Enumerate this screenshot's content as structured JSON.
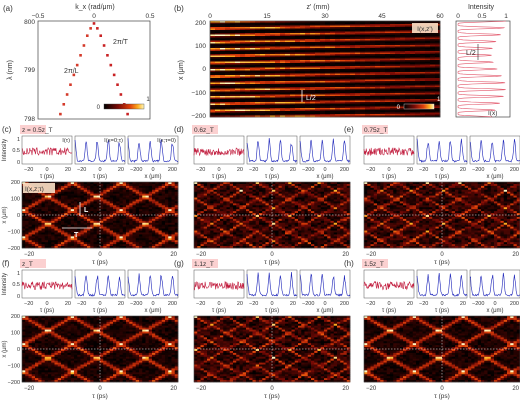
{
  "panel_letters": [
    "(a)",
    "(b)",
    "(c)",
    "(d)",
    "(e)",
    "(f)",
    "(g)",
    "(h)"
  ],
  "panel_a": {
    "xlabel_top": "k_x (rad/μm)",
    "ylabel": "λ (nm)",
    "label_T": "2π/T",
    "label_L": "2π/L",
    "colorbar_min": "0",
    "colorbar_max": "1"
  },
  "panel_b": {
    "xlabel_top": "z' (mm)",
    "ylabel": "x (μm)",
    "inset_label": "I(x,z')",
    "period_label": "L/2",
    "colorbar_min": "0",
    "colorbar_max": "1",
    "profile_title": "Intensity",
    "profile_ticks": [
      "0",
      "0.5",
      "1"
    ],
    "profile_period_label": "L/2",
    "profile_curve_label": "I(x)"
  },
  "row1_tags": [
    "z = 0.5z_T",
    "0.6z_T",
    "0.75z_T"
  ],
  "row1_subtitles": [
    "I(τ)",
    "I(x=0;τ)",
    "I(x;τ=0)"
  ],
  "row2_tags": [
    "z_T",
    "1.1z_T",
    "1.5z_T"
  ],
  "intensity_label": "Intensity",
  "intensity_ticks": [
    "0",
    "0.5",
    "1"
  ],
  "tau_label": "τ (ps)",
  "x_label": "x (μm)",
  "tau_ticks_small": [
    "−20",
    "0",
    "20"
  ],
  "x_ticks_small": [
    "−200",
    "0",
    "200"
  ],
  "map_label": "I(x,z;τ)",
  "map_L": "L",
  "map_T": "T",
  "chart_data": [
    {
      "type": "scatter",
      "panel": "(a)",
      "xlabel": "k_x (rad/μm)",
      "ylabel": "λ (nm)",
      "xlim": [
        -0.5,
        0.5
      ],
      "ylim": [
        798,
        800
      ],
      "xticks": [
        "−0.5",
        "0",
        "0.5"
      ],
      "yticks": [
        "798",
        "799",
        "800"
      ],
      "x": [
        -0.3,
        -0.27,
        -0.24,
        -0.21,
        -0.18,
        -0.15,
        -0.12,
        -0.09,
        -0.06,
        -0.03,
        0.0,
        0.03,
        0.06,
        0.09,
        0.12,
        0.15,
        0.18,
        0.21,
        0.24,
        0.27,
        0.3
      ],
      "y": [
        798.1,
        798.3,
        798.5,
        798.7,
        798.9,
        799.1,
        799.3,
        799.5,
        799.7,
        799.85,
        799.95,
        799.85,
        799.7,
        799.5,
        799.3,
        799.1,
        798.9,
        798.7,
        798.5,
        798.3,
        798.1
      ]
    },
    {
      "type": "heatmap",
      "panel": "(b)",
      "xlabel": "z' (mm)",
      "ylabel": "x (μm)",
      "xlim": [
        0,
        60
      ],
      "ylim": [
        -200,
        200
      ],
      "xticks": [
        "0",
        "15",
        "30",
        "45",
        "60"
      ],
      "yticks": [
        "200",
        "100",
        "0",
        "−100",
        "−200"
      ],
      "colorbar": [
        0,
        1
      ]
    },
    {
      "type": "heatmap",
      "panel": "(c)-(h) maps",
      "xlabel": "τ (ps)",
      "ylabel": "x (μm)",
      "xlim": [
        -20,
        20
      ],
      "ylim": [
        -200,
        200
      ],
      "xticks": [
        "−20",
        "0",
        "20"
      ],
      "yticks": [
        "200",
        "100",
        "0",
        "−100",
        "−200"
      ]
    }
  ]
}
